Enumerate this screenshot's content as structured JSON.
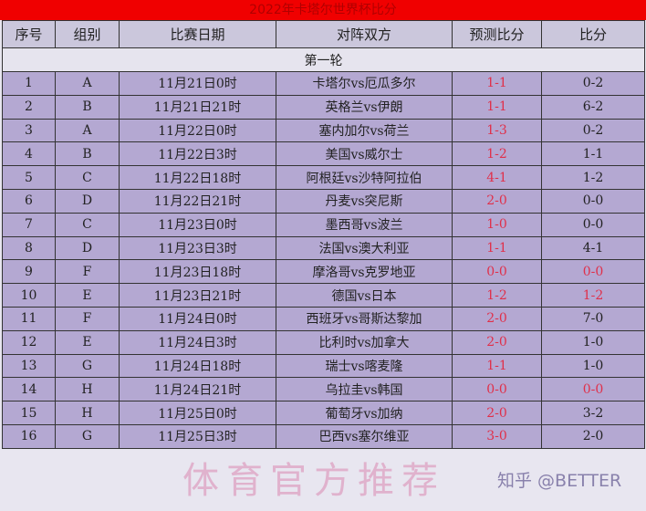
{
  "title": "2022年卡塔尔世界杯比分",
  "headers": [
    "序号",
    "组别",
    "比赛日期",
    "对阵双方",
    "预测比分",
    "比分"
  ],
  "round": "第一轮",
  "rows": [
    [
      "1",
      "A",
      "11月21日0时",
      "卡塔尔vs厄瓜多尔",
      "1-1",
      "0-2"
    ],
    [
      "2",
      "B",
      "11月21日21时",
      "英格兰vs伊朗",
      "1-1",
      "6-2"
    ],
    [
      "3",
      "A",
      "11月22日0时",
      "塞内加尔vs荷兰",
      "1-3",
      "0-2"
    ],
    [
      "4",
      "B",
      "11月22日3时",
      "美国vs威尔士",
      "1-2",
      "1-1"
    ],
    [
      "5",
      "C",
      "11月22日18时",
      "阿根廷vs沙特阿拉伯",
      "4-1",
      "1-2"
    ],
    [
      "6",
      "D",
      "11月22日21时",
      "丹麦vs突尼斯",
      "2-0",
      "0-0"
    ],
    [
      "7",
      "C",
      "11月23日0时",
      "墨西哥vs波兰",
      "1-0",
      "0-0"
    ],
    [
      "8",
      "D",
      "11月23日3时",
      "法国vs澳大利亚",
      "1-1",
      "4-1"
    ],
    [
      "9",
      "F",
      "11月23日18时",
      "摩洛哥vs克罗地亚",
      "0-0",
      "0-0"
    ],
    [
      "10",
      "E",
      "11月23日21时",
      "德国vs日本",
      "1-2",
      "1-2"
    ],
    [
      "11",
      "F",
      "11月24日0时",
      "西班牙vs哥斯达黎加",
      "2-0",
      "7-0"
    ],
    [
      "12",
      "E",
      "11月24日3时",
      "比利时vs加拿大",
      "2-0",
      "1-0"
    ],
    [
      "13",
      "G",
      "11月24日18时",
      "瑞士vs喀麦隆",
      "1-1",
      "1-0"
    ],
    [
      "14",
      "H",
      "11月24日21时",
      "乌拉圭vs韩国",
      "0-0",
      "0-0"
    ],
    [
      "15",
      "H",
      "11月25日0时",
      "葡萄牙vs加纳",
      "2-0",
      "3-2"
    ],
    [
      "16",
      "G",
      "11月25日3时",
      "巴西vs塞尔维亚",
      "3-0",
      "2-0"
    ]
  ],
  "watermark": "体育官方推荐",
  "credit": "知乎 @BETTER",
  "colors": {
    "title_bg": "#f00000",
    "row_bg": "#b4a8d2",
    "prediction": "#e0304a"
  }
}
